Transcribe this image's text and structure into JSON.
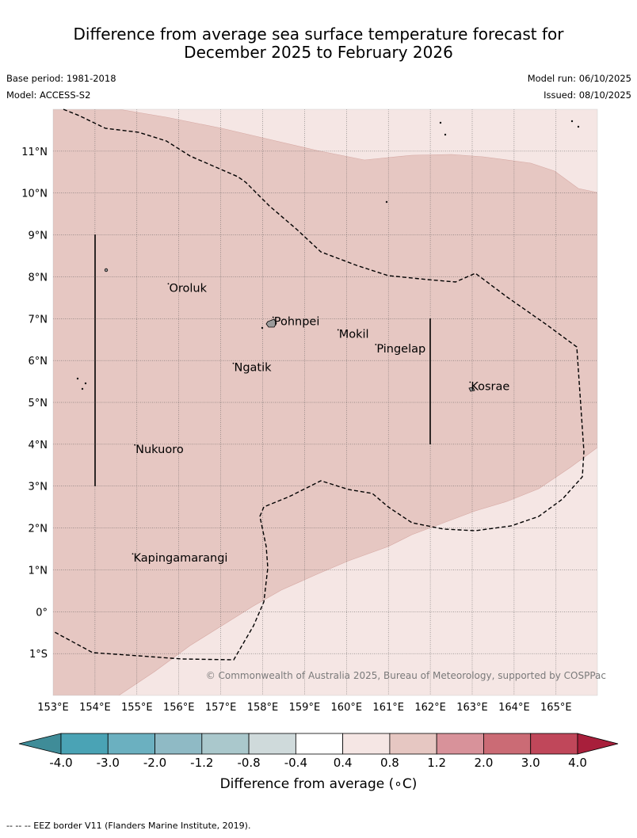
{
  "title": {
    "line1": "Difference from average sea surface temperature forecast for",
    "line2": "December 2025 to February 2026"
  },
  "meta": {
    "base_period": "Base period: 1981-2018",
    "model": "Model: ACCESS-S2",
    "model_run": "Model run: 06/10/2025",
    "issued": "Issued: 08/10/2025"
  },
  "map": {
    "lon_range": [
      153,
      166
    ],
    "lat_range": [
      -2,
      12
    ],
    "x_ticks": [
      {
        "lon": 153,
        "label": "153°E"
      },
      {
        "lon": 154,
        "label": "154°E"
      },
      {
        "lon": 155,
        "label": "155°E"
      },
      {
        "lon": 156,
        "label": "156°E"
      },
      {
        "lon": 157,
        "label": "157°E"
      },
      {
        "lon": 158,
        "label": "158°E"
      },
      {
        "lon": 159,
        "label": "159°E"
      },
      {
        "lon": 160,
        "label": "160°E"
      },
      {
        "lon": 161,
        "label": "161°E"
      },
      {
        "lon": 162,
        "label": "162°E"
      },
      {
        "lon": 163,
        "label": "163°E"
      },
      {
        "lon": 164,
        "label": "164°E"
      },
      {
        "lon": 165,
        "label": "165°E"
      }
    ],
    "y_ticks": [
      {
        "lat": 11,
        "label": "11°N"
      },
      {
        "lat": 10,
        "label": "10°N"
      },
      {
        "lat": 9,
        "label": "9°N"
      },
      {
        "lat": 8,
        "label": "8°N"
      },
      {
        "lat": 7,
        "label": "7°N"
      },
      {
        "lat": 6,
        "label": "6°N"
      },
      {
        "lat": 5,
        "label": "5°N"
      },
      {
        "lat": 4,
        "label": "4°N"
      },
      {
        "lat": 3,
        "label": "3°N"
      },
      {
        "lat": 2,
        "label": "2°N"
      },
      {
        "lat": 1,
        "label": "1°N"
      },
      {
        "lat": 0,
        "label": "0°"
      },
      {
        "lat": -1,
        "label": "1°S"
      }
    ],
    "places": [
      {
        "name": "Oroluk",
        "lon": 155.75,
        "lat": 7.7
      },
      {
        "name": "Pohnpei",
        "lon": 158.25,
        "lat": 6.9
      },
      {
        "name": "Mokil",
        "lon": 159.8,
        "lat": 6.6
      },
      {
        "name": "Pingelap",
        "lon": 160.7,
        "lat": 6.25
      },
      {
        "name": "Ngatik",
        "lon": 157.3,
        "lat": 5.8
      },
      {
        "name": "Kosrae",
        "lon": 162.95,
        "lat": 5.35
      },
      {
        "name": "Nukuoro",
        "lon": 154.95,
        "lat": 3.85
      },
      {
        "name": "Kapingamarangi",
        "lon": 154.9,
        "lat": 1.25
      }
    ],
    "copyright": "© Commonwealth of Australia 2025, Bureau of Meteorology, supported by COSPPac",
    "fill_colors": {
      "band_0_4_to_0_8": "#f5e6e4",
      "band_0_8_to_1_2": "#e6c7c2"
    }
  },
  "legend": {
    "ticks": [
      "-4.0",
      "-3.0",
      "-2.0",
      "-1.2",
      "-0.8",
      "-0.4",
      "0.4",
      "0.8",
      "1.2",
      "2.0",
      "3.0",
      "4.0"
    ],
    "colors": [
      "#3f8c98",
      "#4aa3b5",
      "#6bb0c0",
      "#8fbac5",
      "#aac8cc",
      "#cfdadb",
      "#ffffff",
      "#f5e6e4",
      "#e6c7c2",
      "#d8929a",
      "#cb6b75",
      "#c0475a",
      "#a81f3b"
    ],
    "label": "Difference from average (∘C)"
  },
  "footnote": "--  --  -- EEZ border V11 (Flanders Marine Institute, 2019)."
}
